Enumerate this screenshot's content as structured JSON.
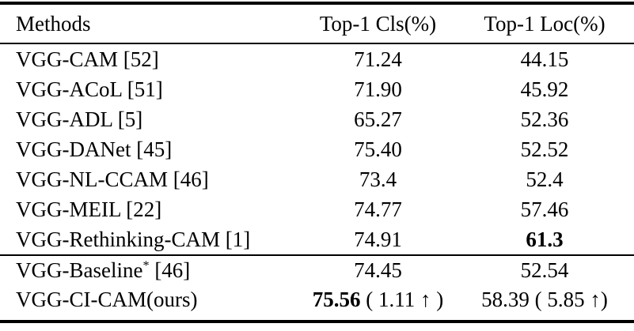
{
  "table": {
    "header": {
      "method": "Methods",
      "cls": "Top-1 Cls(%)",
      "loc": "Top-1 Loc(%)"
    },
    "rows": [
      {
        "method": "VGG-CAM [52]",
        "method_sup": "",
        "method_ref": "",
        "cls_bold": "",
        "cls": "71.24",
        "loc_bold": "",
        "loc": "44.15"
      },
      {
        "method": "VGG-ACoL [51]",
        "method_sup": "",
        "method_ref": "",
        "cls_bold": "",
        "cls": "71.90",
        "loc_bold": "",
        "loc": "45.92"
      },
      {
        "method": "VGG-ADL [5]",
        "method_sup": "",
        "method_ref": "",
        "cls_bold": "",
        "cls": "65.27",
        "loc_bold": "",
        "loc": "52.36"
      },
      {
        "method": "VGG-DANet [45]",
        "method_sup": "",
        "method_ref": "",
        "cls_bold": "",
        "cls": "75.40",
        "loc_bold": "",
        "loc": "52.52"
      },
      {
        "method": "VGG-NL-CCAM [46]",
        "method_sup": "",
        "method_ref": "",
        "cls_bold": "",
        "cls": "73.4",
        "loc_bold": "",
        "loc": "52.4"
      },
      {
        "method": "VGG-MEIL [22]",
        "method_sup": "",
        "method_ref": "",
        "cls_bold": "",
        "cls": "74.77",
        "loc_bold": "",
        "loc": "57.46"
      },
      {
        "method": "VGG-Rethinking-CAM [1]",
        "method_sup": "",
        "method_ref": "",
        "cls_bold": "",
        "cls": "74.91",
        "loc_bold": "61.3",
        "loc": ""
      },
      {
        "method": "VGG-Baseline",
        "method_sup": "*",
        "method_ref": " [46]",
        "cls_bold": "",
        "cls": "74.45",
        "loc_bold": "",
        "loc": "52.54"
      },
      {
        "method": "VGG-CI-CAM(ours)",
        "method_sup": "",
        "method_ref": "",
        "cls_bold": "75.56",
        "cls": " ( 1.11 ↑ )",
        "loc_bold": "",
        "loc": "58.39 ( 5.85 ↑)"
      }
    ]
  },
  "colors": {
    "text": "#000000",
    "background": "#ffffff",
    "rule": "#000000"
  }
}
